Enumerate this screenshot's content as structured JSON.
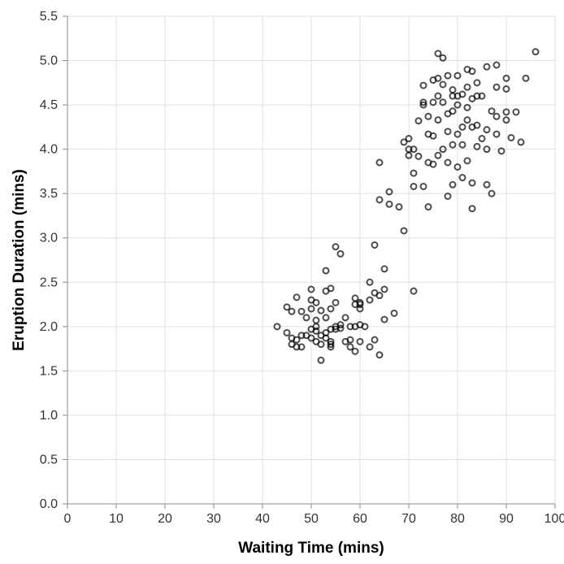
{
  "chart_data": {
    "type": "scatter",
    "title": "",
    "xlabel": "Waiting Time (mins)",
    "ylabel": "Eruption Duration (mins)",
    "xlim": [
      0,
      100
    ],
    "ylim": [
      0,
      5.5
    ],
    "x_ticks": [
      0,
      10,
      20,
      30,
      40,
      50,
      60,
      70,
      80,
      90,
      100
    ],
    "y_ticks": [
      0.0,
      0.5,
      1.0,
      1.5,
      2.0,
      2.5,
      3.0,
      3.5,
      4.0,
      4.5,
      5.0,
      5.5
    ],
    "x_tick_labels": [
      "0",
      "10",
      "20",
      "30",
      "40",
      "50",
      "60",
      "70",
      "80",
      "90",
      "100"
    ],
    "y_tick_labels": [
      "0.0",
      "0.5",
      "1.0",
      "1.5",
      "2.0",
      "2.5",
      "3.0",
      "3.5",
      "4.0",
      "4.5",
      "5.0",
      "5.5"
    ],
    "grid": true,
    "marker": "hollow-circle",
    "point_color": "#000000",
    "points": [
      [
        43,
        2.0
      ],
      [
        45,
        2.22
      ],
      [
        45,
        1.93
      ],
      [
        46,
        1.87
      ],
      [
        46,
        2.17
      ],
      [
        46,
        1.8
      ],
      [
        47,
        2.33
      ],
      [
        47,
        1.77
      ],
      [
        47,
        1.85
      ],
      [
        48,
        2.17
      ],
      [
        48,
        1.77
      ],
      [
        48,
        1.9
      ],
      [
        49,
        2.1
      ],
      [
        49,
        1.9
      ],
      [
        50,
        2.42
      ],
      [
        50,
        2.3
      ],
      [
        50,
        1.97
      ],
      [
        50,
        1.87
      ],
      [
        50,
        2.2
      ],
      [
        51,
        2.07
      ],
      [
        51,
        1.83
      ],
      [
        51,
        1.95
      ],
      [
        51,
        2.27
      ],
      [
        51,
        2.0
      ],
      [
        52,
        1.62
      ],
      [
        52,
        2.18
      ],
      [
        52,
        1.9
      ],
      [
        52,
        1.8
      ],
      [
        53,
        2.63
      ],
      [
        53,
        2.4
      ],
      [
        53,
        2.1
      ],
      [
        53,
        1.87
      ],
      [
        53,
        1.93
      ],
      [
        54,
        2.43
      ],
      [
        54,
        2.2
      ],
      [
        54,
        1.97
      ],
      [
        54,
        1.77
      ],
      [
        54,
        1.8
      ],
      [
        54,
        1.83
      ],
      [
        55,
        2.9
      ],
      [
        55,
        2.27
      ],
      [
        55,
        2.0
      ],
      [
        55,
        1.97
      ],
      [
        56,
        2.82
      ],
      [
        56,
        2.02
      ],
      [
        56,
        1.98
      ],
      [
        57,
        2.1
      ],
      [
        57,
        1.83
      ],
      [
        58,
        2.0
      ],
      [
        58,
        1.85
      ],
      [
        58,
        1.77
      ],
      [
        59,
        2.32
      ],
      [
        59,
        2.25
      ],
      [
        59,
        2.0
      ],
      [
        59,
        1.72
      ],
      [
        60,
        2.27
      ],
      [
        60,
        2.2
      ],
      [
        60,
        2.25
      ],
      [
        60,
        1.83
      ],
      [
        60,
        2.02
      ],
      [
        61,
        2.0
      ],
      [
        62,
        2.5
      ],
      [
        62,
        2.3
      ],
      [
        62,
        1.77
      ],
      [
        63,
        2.92
      ],
      [
        63,
        2.38
      ],
      [
        63,
        1.85
      ],
      [
        64,
        2.35
      ],
      [
        64,
        1.68
      ],
      [
        65,
        2.65
      ],
      [
        65,
        2.42
      ],
      [
        65,
        2.08
      ],
      [
        64,
        3.85
      ],
      [
        64,
        3.43
      ],
      [
        66,
        3.52
      ],
      [
        66,
        3.38
      ],
      [
        67,
        2.15
      ],
      [
        68,
        3.35
      ],
      [
        69,
        3.08
      ],
      [
        69,
        4.08
      ],
      [
        70,
        3.93
      ],
      [
        70,
        4.12
      ],
      [
        70,
        4.0
      ],
      [
        71,
        2.4
      ],
      [
        71,
        3.58
      ],
      [
        71,
        3.73
      ],
      [
        71,
        4.0
      ],
      [
        72,
        4.32
      ],
      [
        72,
        3.92
      ],
      [
        73,
        3.58
      ],
      [
        73,
        4.5
      ],
      [
        73,
        4.53
      ],
      [
        73,
        4.72
      ],
      [
        74,
        3.35
      ],
      [
        74,
        3.85
      ],
      [
        74,
        4.17
      ],
      [
        74,
        4.37
      ],
      [
        75,
        3.83
      ],
      [
        75,
        4.15
      ],
      [
        75,
        4.53
      ],
      [
        75,
        4.78
      ],
      [
        76,
        5.08
      ],
      [
        76,
        4.8
      ],
      [
        76,
        4.6
      ],
      [
        76,
        4.33
      ],
      [
        76,
        3.93
      ],
      [
        77,
        5.03
      ],
      [
        77,
        4.53
      ],
      [
        77,
        4.0
      ],
      [
        77,
        4.73
      ],
      [
        78,
        3.47
      ],
      [
        78,
        4.2
      ],
      [
        78,
        4.83
      ],
      [
        78,
        4.4
      ],
      [
        78,
        3.85
      ],
      [
        79,
        3.6
      ],
      [
        79,
        4.6
      ],
      [
        79,
        4.43
      ],
      [
        79,
        4.05
      ],
      [
        79,
        4.67
      ],
      [
        80,
        4.83
      ],
      [
        80,
        4.6
      ],
      [
        80,
        4.17
      ],
      [
        80,
        3.8
      ],
      [
        80,
        4.5
      ],
      [
        81,
        3.68
      ],
      [
        81,
        4.25
      ],
      [
        81,
        4.62
      ],
      [
        81,
        4.05
      ],
      [
        82,
        4.9
      ],
      [
        82,
        4.7
      ],
      [
        82,
        4.47
      ],
      [
        82,
        4.33
      ],
      [
        82,
        3.87
      ],
      [
        83,
        3.62
      ],
      [
        83,
        4.88
      ],
      [
        83,
        4.57
      ],
      [
        83,
        4.25
      ],
      [
        83,
        3.33
      ],
      [
        84,
        4.03
      ],
      [
        84,
        4.6
      ],
      [
        84,
        4.75
      ],
      [
        84,
        4.27
      ],
      [
        85,
        4.6
      ],
      [
        85,
        4.12
      ],
      [
        86,
        4.93
      ],
      [
        86,
        4.22
      ],
      [
        86,
        4.0
      ],
      [
        86,
        3.6
      ],
      [
        87,
        3.5
      ],
      [
        87,
        4.43
      ],
      [
        88,
        4.95
      ],
      [
        88,
        4.7
      ],
      [
        88,
        4.37
      ],
      [
        88,
        4.17
      ],
      [
        89,
        3.98
      ],
      [
        90,
        4.8
      ],
      [
        90,
        4.68
      ],
      [
        90,
        4.42
      ],
      [
        90,
        4.33
      ],
      [
        91,
        4.13
      ],
      [
        92,
        4.42
      ],
      [
        93,
        4.08
      ],
      [
        94,
        4.8
      ],
      [
        96,
        5.1
      ]
    ]
  }
}
